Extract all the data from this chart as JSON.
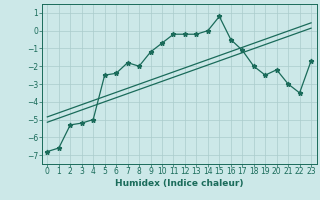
{
  "x": [
    0,
    1,
    2,
    3,
    4,
    5,
    6,
    7,
    8,
    9,
    10,
    11,
    12,
    13,
    14,
    15,
    16,
    17,
    18,
    19,
    20,
    21,
    22,
    23
  ],
  "y_curve": [
    -6.8,
    -6.6,
    -5.3,
    -5.2,
    -5.0,
    -2.5,
    -2.4,
    -1.8,
    -2.0,
    -1.2,
    -0.7,
    -0.2,
    -0.2,
    -0.2,
    0.0,
    0.8,
    -0.5,
    -1.1,
    -2.0,
    -2.5,
    -2.2,
    -3.0,
    -3.5,
    -1.7
  ],
  "y_line1": [
    -4.85,
    -4.62,
    -4.39,
    -4.16,
    -3.93,
    -3.7,
    -3.47,
    -3.24,
    -3.01,
    -2.78,
    -2.55,
    -2.32,
    -2.09,
    -1.86,
    -1.63,
    -1.4,
    -1.17,
    -0.94,
    -0.71,
    -0.48,
    -0.25,
    -0.02,
    0.21,
    0.44
  ],
  "y_line2": [
    -5.15,
    -4.92,
    -4.69,
    -4.46,
    -4.23,
    -4.0,
    -3.77,
    -3.54,
    -3.31,
    -3.08,
    -2.85,
    -2.62,
    -2.39,
    -2.16,
    -1.93,
    -1.7,
    -1.47,
    -1.24,
    -1.01,
    -0.78,
    -0.55,
    -0.32,
    -0.09,
    0.14
  ],
  "line_color": "#1a6b5a",
  "bg_color": "#cce8e8",
  "grid_color": "#aacccc",
  "xlabel": "Humidex (Indice chaleur)",
  "ylim": [
    -7.5,
    1.5
  ],
  "xlim": [
    -0.5,
    23.5
  ],
  "yticks": [
    1,
    0,
    -1,
    -2,
    -3,
    -4,
    -5,
    -6,
    -7
  ],
  "xticks": [
    0,
    1,
    2,
    3,
    4,
    5,
    6,
    7,
    8,
    9,
    10,
    11,
    12,
    13,
    14,
    15,
    16,
    17,
    18,
    19,
    20,
    21,
    22,
    23
  ]
}
